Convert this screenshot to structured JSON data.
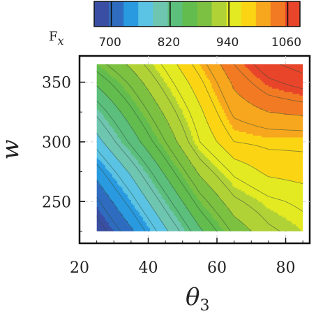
{
  "chart_data": {
    "type": "contour",
    "title": "",
    "xlabel": "θ",
    "xlabel_sub": "3",
    "ylabel": "w",
    "xlim": [
      25,
      85
    ],
    "ylim": [
      225,
      365
    ],
    "axis_x_range": [
      20,
      87
    ],
    "axis_y_range": [
      215,
      372
    ],
    "x_ticks": [
      20,
      40,
      60,
      80
    ],
    "y_ticks": [
      250,
      300,
      350
    ],
    "x_tick_labels": [
      "20",
      "40",
      "60",
      "80"
    ],
    "y_tick_labels": [
      "250",
      "300",
      "350"
    ],
    "grid": true,
    "colorbar": {
      "label": "F",
      "label_sub": "x",
      "position": "top",
      "levels": [
        680,
        700,
        720,
        740,
        760,
        780,
        800,
        820,
        840,
        860,
        880,
        900,
        920,
        940,
        960,
        980,
        1000,
        1020,
        1040,
        1060,
        1080,
        1100
      ],
      "tick_labels": [
        "700",
        "820",
        "940",
        "1060"
      ],
      "tick_values": [
        700,
        820,
        940,
        1060
      ],
      "colors": [
        "#3a4fa3",
        "#2f6cc0",
        "#2a9ae0",
        "#5bc3e3",
        "#6fc6b0",
        "#5cbf7c",
        "#62bd4e",
        "#7cc141",
        "#b1d236",
        "#e4ea22",
        "#fbd514",
        "#f7a71e",
        "#f27a23",
        "#e8452a"
      ]
    },
    "field": {
      "description": "F_x as function of theta_3 (x) and w (y)",
      "x_grid": [
        25,
        35,
        45,
        55,
        65,
        75,
        85
      ],
      "y_grid": [
        225,
        250,
        275,
        300,
        325,
        350,
        365
      ],
      "values": [
        [
          685,
          735,
          795,
          855,
          905,
          935,
          950
        ],
        [
          715,
          770,
          830,
          890,
          935,
          955,
          965
        ],
        [
          750,
          805,
          865,
          925,
          965,
          985,
          990
        ],
        [
          790,
          845,
          900,
          960,
          1000,
          1005,
          1005
        ],
        [
          825,
          875,
          925,
          975,
          1025,
          1040,
          1045
        ],
        [
          865,
          905,
          950,
          995,
          1045,
          1075,
          1090
        ],
        [
          890,
          925,
          965,
          1010,
          1060,
          1095,
          1110
        ]
      ]
    }
  }
}
